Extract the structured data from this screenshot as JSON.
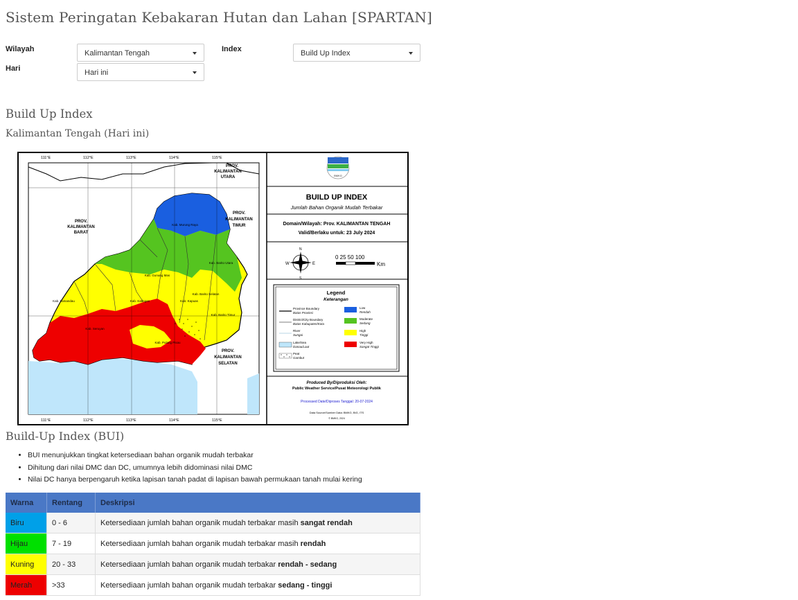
{
  "page_title": "Sistem Peringatan Kebakaran Hutan dan Lahan [SPARTAN]",
  "filters": {
    "wilayah_label": "Wilayah",
    "wilayah_value": "Kalimantan Tengah",
    "index_label": "Index",
    "index_value": "Build Up Index",
    "hari_label": "Hari",
    "hari_value": "Hari ini"
  },
  "section": {
    "title": "Build Up Index",
    "subtitle": "Kalimantan Tengah (Hari ini)"
  },
  "map": {
    "lon_labels": [
      "111°E",
      "112°E",
      "113°E",
      "114°E",
      "115°E"
    ],
    "lat_labels": [
      "1°S",
      "0°",
      "1°S",
      "2°S",
      "3°S",
      "4°S"
    ],
    "logo_text": "BMKG",
    "title": "BUILD UP INDEX",
    "subtitle": "Jumlah Bahan Organik Mudah Terbakar",
    "domain": "Domain/Wilayah: Prov. KALIMANTAN TENGAH",
    "valid": "Valid/Berlaku untuk: 23 July 2024",
    "scale": "0   25 50     100",
    "scale_unit": "Km",
    "legend_title": "Legend",
    "legend_subtitle": "Keterangan",
    "legend_items": [
      "Province Boundary",
      "Batas Provinsi",
      "District/City Boundary",
      "Batas Kabupaten/Kota",
      "River",
      "Sungai",
      "Lake/Sea",
      "Danau/Laut",
      "Peat",
      "Gambut"
    ],
    "legend_classes": [
      {
        "name": "Low",
        "local": "Rendah",
        "color": "#1a5fe0"
      },
      {
        "name": "Moderate",
        "local": "Sedang",
        "color": "#55c420"
      },
      {
        "name": "High",
        "local": "Tinggi",
        "color": "#ffff00"
      },
      {
        "name": "Very High",
        "local": "Sangat Tinggi",
        "color": "#ee0000"
      }
    ],
    "produced_by": "Produced By/Diproduksi Oleh:",
    "producer": "Public Weather Service/Pusat Meteorologi Publik",
    "processed": "Processed Date/Diproses Tanggal: 20-07-2024",
    "data_source": "Data Source/Sumber Data: BMKG, BIG, ITS",
    "copyright": "© BMKG, 2024",
    "places": [
      "PROV. KALIMANTAN UTARA",
      "PROV. KALIMANTAN BARAT",
      "PROV. KALIMANTAN TIMUR",
      "PROV. KALIMANTAN SELATAN",
      "Kab. Murung Raya",
      "Kab. Barito Utara",
      "Kab. Gunung Mas",
      "Kab. Katingan",
      "Kab. Kapuas",
      "Kab. Barito Selatan",
      "Kab. Barito Timur",
      "Kab. Lamandau",
      "Kab. Seruyan",
      "Kab. Pulang Pisau"
    ]
  },
  "bui": {
    "title": "Build-Up Index (BUI)",
    "bullets": [
      "BUI menunjukkan tingkat ketersediaan bahan organik mudah terbakar",
      "Dihitung dari nilai DMC dan DC, umumnya lebih didominasi nilai DMC",
      "Nilai DC hanya berpengaruh ketika lapisan tanah padat di lapisan bawah permukaan tanah mulai kering"
    ],
    "headers": [
      "Warna",
      "Rentang",
      "Deskripsi"
    ],
    "rows": [
      {
        "color_name": "Biru",
        "color": "#00a0e8",
        "range": "0 - 6",
        "desc": "Ketersediaan jumlah bahan organik mudah terbakar masih ",
        "desc_bold": "sangat rendah"
      },
      {
        "color_name": "Hijau",
        "color": "#00e000",
        "range": "7 - 19",
        "desc": "Ketersediaan jumlah bahan organik mudah terbakar masih ",
        "desc_bold": "rendah"
      },
      {
        "color_name": "Kuning",
        "color": "#ffff00",
        "range": "20 - 33",
        "desc": "Ketersediaan jumlah bahan organik mudah terbakar ",
        "desc_bold": "rendah - sedang"
      },
      {
        "color_name": "Merah",
        "color": "#ee0000",
        "range": ">33",
        "desc": "Ketersediaan jumlah bahan organik mudah terbakar ",
        "desc_bold": "sedang - tinggi"
      }
    ]
  }
}
